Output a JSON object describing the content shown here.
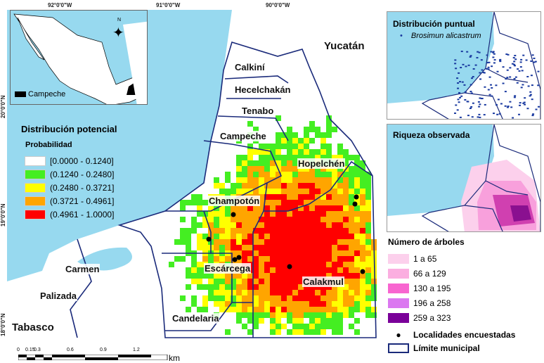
{
  "coords": {
    "lon": [
      "92°0'0\"W",
      "91°0'0\"W",
      "90°0'0\"W"
    ],
    "lat": [
      "20°0'0\"N",
      "19°0'0\"N",
      "18°0'0\"N"
    ]
  },
  "inset": {
    "label": "Campeche",
    "north": "N"
  },
  "labels": {
    "yucatan": "Yucatán",
    "calkini": "Calkiní",
    "hecelchakan": "Hecelchakán",
    "tenabo": "Tenabo",
    "campeche": "Campeche",
    "hopelchen": "Hopelchén",
    "champoton": "Champotón",
    "carmen": "Carmen",
    "escarcega": "Escárcega",
    "calakmul": "Calakmul",
    "palizada": "Palizada",
    "candelaria": "Candelaria",
    "tabasco": "Tabasco"
  },
  "legend": {
    "title": "Distribución potencial",
    "subtitle": "Probabilidad",
    "classes": [
      {
        "label": "[0.0000 - 0.1240]",
        "color": "#ffffff"
      },
      {
        "label": "(0.1240 - 0.2480]",
        "color": "#44ee22"
      },
      {
        "label": "(0.2480 - 0.3721]",
        "color": "#ffff00"
      },
      {
        "label": "(0.3721 - 0.4961]",
        "color": "#ffa500"
      },
      {
        "label": "(0.4961 - 1.0000]",
        "color": "#ff0000"
      }
    ]
  },
  "scale": {
    "ticks": [
      "0",
      "0.15",
      "0.3",
      "0.6",
      "0.9",
      "1.2"
    ],
    "unit": "km"
  },
  "panel_points": {
    "title": "Distribución puntual",
    "species": "Brosimun alicastrum"
  },
  "panel_richness": {
    "title": "Riqueza observada"
  },
  "richness_legend": {
    "title": "Número de árboles",
    "classes": [
      {
        "label": "1 a 65",
        "color": "#fcd0ec"
      },
      {
        "label": "66 a 129",
        "color": "#fbaee0"
      },
      {
        "label": "130 a 195",
        "color": "#f865d0"
      },
      {
        "label": "196 a 258",
        "color": "#db78f0"
      },
      {
        "label": "259 a 323",
        "color": "#7a0099"
      }
    ],
    "localities": "Localidades encuestadas",
    "boundary": "Límite municipal"
  },
  "colors": {
    "sea": "#97d9ef",
    "boundary": "#1a2a7a"
  }
}
